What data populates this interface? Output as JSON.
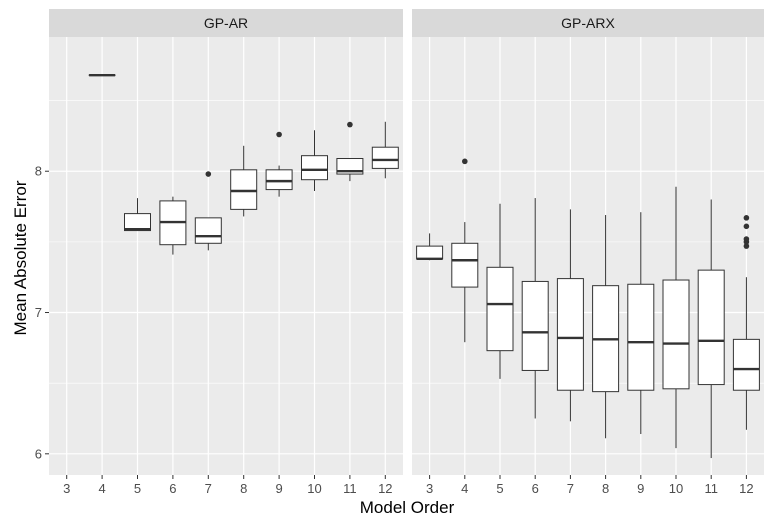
{
  "chart_data": {
    "type": "boxplot",
    "xlabel": "Model Order",
    "ylabel": "Mean Absolute Error",
    "ylim": [
      5.85,
      8.95
    ],
    "yticks": [
      6,
      7,
      8
    ],
    "categories": [
      "3",
      "4",
      "5",
      "6",
      "7",
      "8",
      "9",
      "10",
      "11",
      "12"
    ],
    "grid": true,
    "colors": {
      "panel": "#ebebeb",
      "strip": "#d9d9d9",
      "grid_major": "#ffffff",
      "box_fill": "#ffffff",
      "box_line": "#333333"
    },
    "facets": [
      {
        "title": "GP-AR",
        "boxes": [
          {
            "x": "4",
            "min": 8.68,
            "q1": 8.68,
            "median": 8.68,
            "q3": 8.68,
            "max": 8.68,
            "outliers": []
          },
          {
            "x": "5",
            "min": 7.58,
            "q1": 7.58,
            "median": 7.59,
            "q3": 7.7,
            "max": 7.81,
            "outliers": []
          },
          {
            "x": "6",
            "min": 7.41,
            "q1": 7.48,
            "median": 7.64,
            "q3": 7.79,
            "max": 7.82,
            "outliers": []
          },
          {
            "x": "7",
            "min": 7.44,
            "q1": 7.49,
            "median": 7.54,
            "q3": 7.67,
            "max": 7.67,
            "outliers": [
              7.98
            ]
          },
          {
            "x": "8",
            "min": 7.68,
            "q1": 7.73,
            "median": 7.86,
            "q3": 8.01,
            "max": 8.18,
            "outliers": []
          },
          {
            "x": "9",
            "min": 7.82,
            "q1": 7.87,
            "median": 7.93,
            "q3": 8.01,
            "max": 8.04,
            "outliers": [
              8.26
            ]
          },
          {
            "x": "10",
            "min": 7.86,
            "q1": 7.94,
            "median": 8.01,
            "q3": 8.11,
            "max": 8.29,
            "outliers": []
          },
          {
            "x": "11",
            "min": 7.93,
            "q1": 7.98,
            "median": 8.0,
            "q3": 8.09,
            "max": 8.09,
            "outliers": [
              8.33
            ]
          },
          {
            "x": "12",
            "min": 7.95,
            "q1": 8.02,
            "median": 8.08,
            "q3": 8.17,
            "max": 8.35,
            "outliers": []
          }
        ]
      },
      {
        "title": "GP-ARX",
        "boxes": [
          {
            "x": "3",
            "min": 7.37,
            "q1": 7.38,
            "median": 7.38,
            "q3": 7.47,
            "max": 7.56,
            "outliers": []
          },
          {
            "x": "4",
            "min": 6.79,
            "q1": 7.18,
            "median": 7.37,
            "q3": 7.49,
            "max": 7.64,
            "outliers": [
              8.07
            ]
          },
          {
            "x": "5",
            "min": 6.53,
            "q1": 6.73,
            "median": 7.06,
            "q3": 7.32,
            "max": 7.77,
            "outliers": []
          },
          {
            "x": "6",
            "min": 6.25,
            "q1": 6.59,
            "median": 6.86,
            "q3": 7.22,
            "max": 7.81,
            "outliers": []
          },
          {
            "x": "7",
            "min": 6.23,
            "q1": 6.45,
            "median": 6.82,
            "q3": 7.24,
            "max": 7.73,
            "outliers": []
          },
          {
            "x": "8",
            "min": 6.11,
            "q1": 6.44,
            "median": 6.81,
            "q3": 7.19,
            "max": 7.69,
            "outliers": []
          },
          {
            "x": "9",
            "min": 6.14,
            "q1": 6.45,
            "median": 6.79,
            "q3": 7.2,
            "max": 7.71,
            "outliers": []
          },
          {
            "x": "10",
            "min": 6.04,
            "q1": 6.46,
            "median": 6.78,
            "q3": 7.23,
            "max": 7.89,
            "outliers": []
          },
          {
            "x": "11",
            "min": 5.97,
            "q1": 6.49,
            "median": 6.8,
            "q3": 7.3,
            "max": 7.8,
            "outliers": []
          },
          {
            "x": "12",
            "min": 6.17,
            "q1": 6.45,
            "median": 6.6,
            "q3": 6.81,
            "max": 7.25,
            "outliers": [
              7.47,
              7.5,
              7.52,
              7.61,
              7.67
            ]
          }
        ]
      }
    ]
  }
}
